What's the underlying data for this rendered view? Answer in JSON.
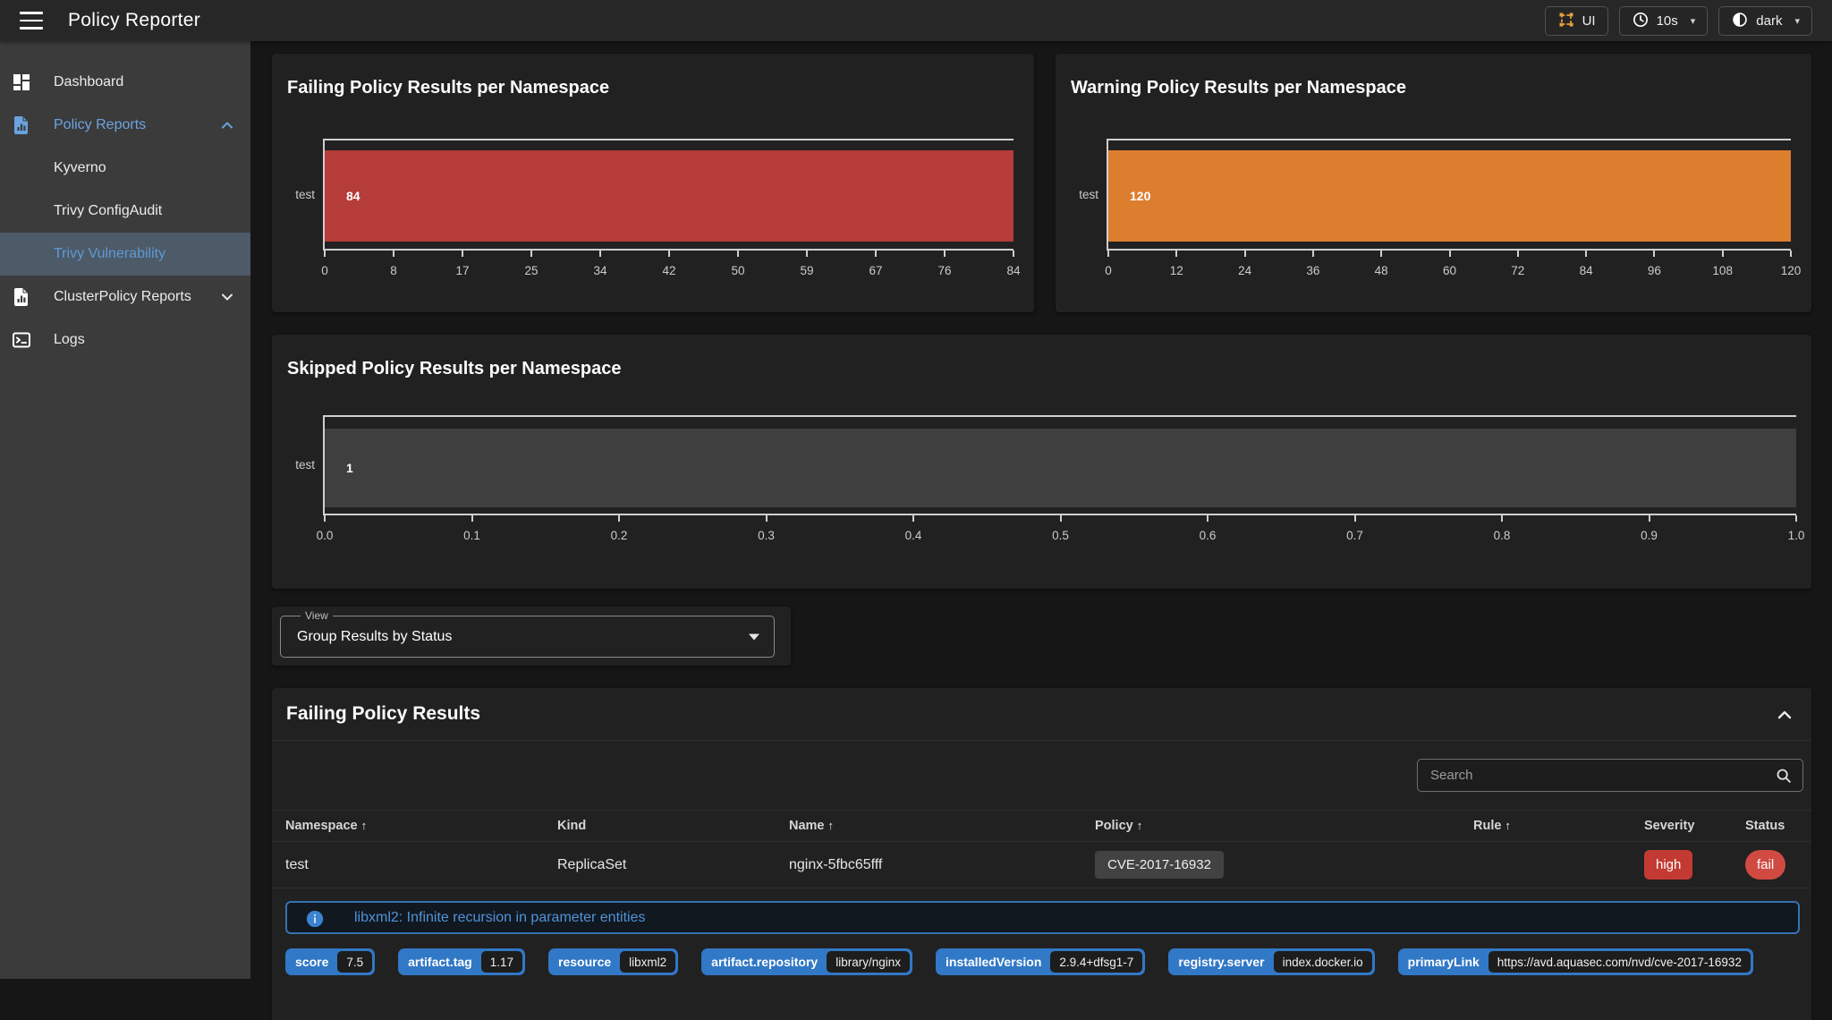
{
  "app": {
    "title": "Policy Reporter"
  },
  "topbar": {
    "ui_button": {
      "label": "UI",
      "icon_color": "#e8a13c"
    },
    "interval_button": {
      "label": "10s"
    },
    "theme_button": {
      "label": "dark"
    }
  },
  "sidebar": {
    "items": [
      {
        "label": "Dashboard",
        "icon": "dashboard-icon",
        "id": "dashboard"
      },
      {
        "label": "Policy Reports",
        "icon": "file-chart-icon",
        "chevron": "up",
        "section_active": true,
        "id": "policy-reports"
      },
      {
        "label": "Kyverno",
        "sub": true,
        "id": "kyverno"
      },
      {
        "label": "Trivy ConfigAudit",
        "sub": true,
        "id": "trivy-configaudit"
      },
      {
        "label": "Trivy Vulnerability",
        "sub": true,
        "selected": true,
        "id": "trivy-vulnerability"
      },
      {
        "label": "ClusterPolicy Reports",
        "icon": "file-chart-icon",
        "chevron": "down",
        "id": "clusterpolicy-reports"
      },
      {
        "label": "Logs",
        "icon": "console-icon",
        "id": "logs"
      }
    ],
    "selected_bg": "#4d5a68",
    "active_text": "#6ba3e0"
  },
  "chart_data": [
    {
      "type": "bar",
      "title": "Failing Policy Results per Namespace",
      "categories": [
        "test"
      ],
      "values": [
        84
      ],
      "value_labels": [
        "84"
      ],
      "color": "#b53c38",
      "xlim": [
        0,
        84
      ],
      "xticks": [
        "0",
        "8",
        "17",
        "25",
        "34",
        "42",
        "50",
        "59",
        "67",
        "76",
        "84"
      ],
      "grid": false,
      "legend": "none"
    },
    {
      "type": "bar",
      "title": "Warning Policy Results per Namespace",
      "categories": [
        "test"
      ],
      "values": [
        120
      ],
      "value_labels": [
        "120"
      ],
      "color": "#dd7e2f",
      "xlim": [
        0,
        120
      ],
      "xticks": [
        "0",
        "12",
        "24",
        "36",
        "48",
        "60",
        "72",
        "84",
        "96",
        "108",
        "120"
      ],
      "grid": false,
      "legend": "none"
    },
    {
      "type": "bar",
      "title": "Skipped Policy Results per Namespace",
      "categories": [
        "test"
      ],
      "values": [
        1
      ],
      "value_labels": [
        "1"
      ],
      "color": "#3f3f3f",
      "xlim": [
        0,
        1
      ],
      "xticks": [
        "0.0",
        "0.1",
        "0.2",
        "0.3",
        "0.4",
        "0.5",
        "0.6",
        "0.7",
        "0.8",
        "0.9",
        "1.0"
      ],
      "grid": false,
      "legend": "none"
    }
  ],
  "view_select": {
    "label": "View",
    "value": "Group Results by Status"
  },
  "results_section": {
    "title": "Failing Policy Results",
    "search_placeholder": "Search",
    "columns": [
      {
        "label": "Namespace",
        "sorted": true
      },
      {
        "label": "Kind",
        "sorted": false
      },
      {
        "label": "Name",
        "sorted": true
      },
      {
        "label": "Policy",
        "sorted": true
      },
      {
        "label": "Rule",
        "sorted": true
      },
      {
        "label": "Severity",
        "sorted": false
      },
      {
        "label": "Status",
        "sorted": false
      }
    ],
    "rows": [
      {
        "namespace": "test",
        "kind": "ReplicaSet",
        "name": "nginx-5fbc65fff",
        "policy": "CVE-2017-16932",
        "rule": "",
        "severity": "high",
        "status": "fail",
        "severity_color": "#c23a32",
        "status_color": "#d04a42"
      }
    ],
    "detail": {
      "message": "libxml2: Infinite recursion in parameter entities",
      "chips": [
        {
          "label": "score",
          "value": "7.5"
        },
        {
          "label": "artifact.tag",
          "value": "1.17"
        },
        {
          "label": "resource",
          "value": "libxml2"
        },
        {
          "label": "artifact.repository",
          "value": "library/nginx"
        },
        {
          "label": "installedVersion",
          "value": "2.9.4+dfsg1-7"
        },
        {
          "label": "registry.server",
          "value": "index.docker.io"
        },
        {
          "label": "primaryLink",
          "value": "https://avd.aquasec.com/nvd/cve-2017-16932"
        }
      ],
      "chip_color": "#3178c6"
    }
  }
}
